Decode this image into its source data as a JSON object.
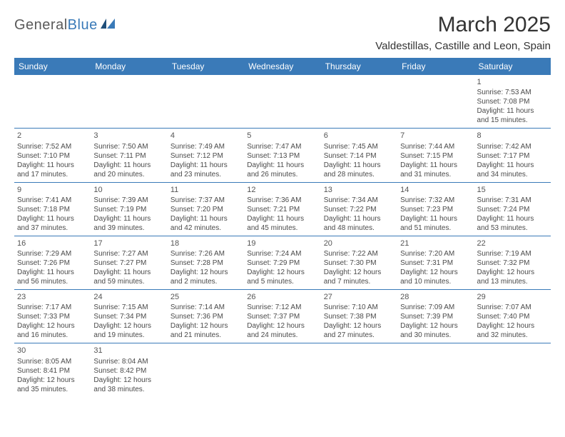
{
  "logo": {
    "text1": "General",
    "text2": "Blue"
  },
  "title": "March 2025",
  "location": "Valdestillas, Castille and Leon, Spain",
  "header_bg": "#3a7ab8",
  "weekdays": [
    "Sunday",
    "Monday",
    "Tuesday",
    "Wednesday",
    "Thursday",
    "Friday",
    "Saturday"
  ],
  "weeks": [
    [
      null,
      null,
      null,
      null,
      null,
      null,
      {
        "n": "1",
        "sr": "Sunrise: 7:53 AM",
        "ss": "Sunset: 7:08 PM",
        "d1": "Daylight: 11 hours",
        "d2": "and 15 minutes."
      }
    ],
    [
      {
        "n": "2",
        "sr": "Sunrise: 7:52 AM",
        "ss": "Sunset: 7:10 PM",
        "d1": "Daylight: 11 hours",
        "d2": "and 17 minutes."
      },
      {
        "n": "3",
        "sr": "Sunrise: 7:50 AM",
        "ss": "Sunset: 7:11 PM",
        "d1": "Daylight: 11 hours",
        "d2": "and 20 minutes."
      },
      {
        "n": "4",
        "sr": "Sunrise: 7:49 AM",
        "ss": "Sunset: 7:12 PM",
        "d1": "Daylight: 11 hours",
        "d2": "and 23 minutes."
      },
      {
        "n": "5",
        "sr": "Sunrise: 7:47 AM",
        "ss": "Sunset: 7:13 PM",
        "d1": "Daylight: 11 hours",
        "d2": "and 26 minutes."
      },
      {
        "n": "6",
        "sr": "Sunrise: 7:45 AM",
        "ss": "Sunset: 7:14 PM",
        "d1": "Daylight: 11 hours",
        "d2": "and 28 minutes."
      },
      {
        "n": "7",
        "sr": "Sunrise: 7:44 AM",
        "ss": "Sunset: 7:15 PM",
        "d1": "Daylight: 11 hours",
        "d2": "and 31 minutes."
      },
      {
        "n": "8",
        "sr": "Sunrise: 7:42 AM",
        "ss": "Sunset: 7:17 PM",
        "d1": "Daylight: 11 hours",
        "d2": "and 34 minutes."
      }
    ],
    [
      {
        "n": "9",
        "sr": "Sunrise: 7:41 AM",
        "ss": "Sunset: 7:18 PM",
        "d1": "Daylight: 11 hours",
        "d2": "and 37 minutes."
      },
      {
        "n": "10",
        "sr": "Sunrise: 7:39 AM",
        "ss": "Sunset: 7:19 PM",
        "d1": "Daylight: 11 hours",
        "d2": "and 39 minutes."
      },
      {
        "n": "11",
        "sr": "Sunrise: 7:37 AM",
        "ss": "Sunset: 7:20 PM",
        "d1": "Daylight: 11 hours",
        "d2": "and 42 minutes."
      },
      {
        "n": "12",
        "sr": "Sunrise: 7:36 AM",
        "ss": "Sunset: 7:21 PM",
        "d1": "Daylight: 11 hours",
        "d2": "and 45 minutes."
      },
      {
        "n": "13",
        "sr": "Sunrise: 7:34 AM",
        "ss": "Sunset: 7:22 PM",
        "d1": "Daylight: 11 hours",
        "d2": "and 48 minutes."
      },
      {
        "n": "14",
        "sr": "Sunrise: 7:32 AM",
        "ss": "Sunset: 7:23 PM",
        "d1": "Daylight: 11 hours",
        "d2": "and 51 minutes."
      },
      {
        "n": "15",
        "sr": "Sunrise: 7:31 AM",
        "ss": "Sunset: 7:24 PM",
        "d1": "Daylight: 11 hours",
        "d2": "and 53 minutes."
      }
    ],
    [
      {
        "n": "16",
        "sr": "Sunrise: 7:29 AM",
        "ss": "Sunset: 7:26 PM",
        "d1": "Daylight: 11 hours",
        "d2": "and 56 minutes."
      },
      {
        "n": "17",
        "sr": "Sunrise: 7:27 AM",
        "ss": "Sunset: 7:27 PM",
        "d1": "Daylight: 11 hours",
        "d2": "and 59 minutes."
      },
      {
        "n": "18",
        "sr": "Sunrise: 7:26 AM",
        "ss": "Sunset: 7:28 PM",
        "d1": "Daylight: 12 hours",
        "d2": "and 2 minutes."
      },
      {
        "n": "19",
        "sr": "Sunrise: 7:24 AM",
        "ss": "Sunset: 7:29 PM",
        "d1": "Daylight: 12 hours",
        "d2": "and 5 minutes."
      },
      {
        "n": "20",
        "sr": "Sunrise: 7:22 AM",
        "ss": "Sunset: 7:30 PM",
        "d1": "Daylight: 12 hours",
        "d2": "and 7 minutes."
      },
      {
        "n": "21",
        "sr": "Sunrise: 7:20 AM",
        "ss": "Sunset: 7:31 PM",
        "d1": "Daylight: 12 hours",
        "d2": "and 10 minutes."
      },
      {
        "n": "22",
        "sr": "Sunrise: 7:19 AM",
        "ss": "Sunset: 7:32 PM",
        "d1": "Daylight: 12 hours",
        "d2": "and 13 minutes."
      }
    ],
    [
      {
        "n": "23",
        "sr": "Sunrise: 7:17 AM",
        "ss": "Sunset: 7:33 PM",
        "d1": "Daylight: 12 hours",
        "d2": "and 16 minutes."
      },
      {
        "n": "24",
        "sr": "Sunrise: 7:15 AM",
        "ss": "Sunset: 7:34 PM",
        "d1": "Daylight: 12 hours",
        "d2": "and 19 minutes."
      },
      {
        "n": "25",
        "sr": "Sunrise: 7:14 AM",
        "ss": "Sunset: 7:36 PM",
        "d1": "Daylight: 12 hours",
        "d2": "and 21 minutes."
      },
      {
        "n": "26",
        "sr": "Sunrise: 7:12 AM",
        "ss": "Sunset: 7:37 PM",
        "d1": "Daylight: 12 hours",
        "d2": "and 24 minutes."
      },
      {
        "n": "27",
        "sr": "Sunrise: 7:10 AM",
        "ss": "Sunset: 7:38 PM",
        "d1": "Daylight: 12 hours",
        "d2": "and 27 minutes."
      },
      {
        "n": "28",
        "sr": "Sunrise: 7:09 AM",
        "ss": "Sunset: 7:39 PM",
        "d1": "Daylight: 12 hours",
        "d2": "and 30 minutes."
      },
      {
        "n": "29",
        "sr": "Sunrise: 7:07 AM",
        "ss": "Sunset: 7:40 PM",
        "d1": "Daylight: 12 hours",
        "d2": "and 32 minutes."
      }
    ],
    [
      {
        "n": "30",
        "sr": "Sunrise: 8:05 AM",
        "ss": "Sunset: 8:41 PM",
        "d1": "Daylight: 12 hours",
        "d2": "and 35 minutes."
      },
      {
        "n": "31",
        "sr": "Sunrise: 8:04 AM",
        "ss": "Sunset: 8:42 PM",
        "d1": "Daylight: 12 hours",
        "d2": "and 38 minutes."
      },
      null,
      null,
      null,
      null,
      null
    ]
  ]
}
